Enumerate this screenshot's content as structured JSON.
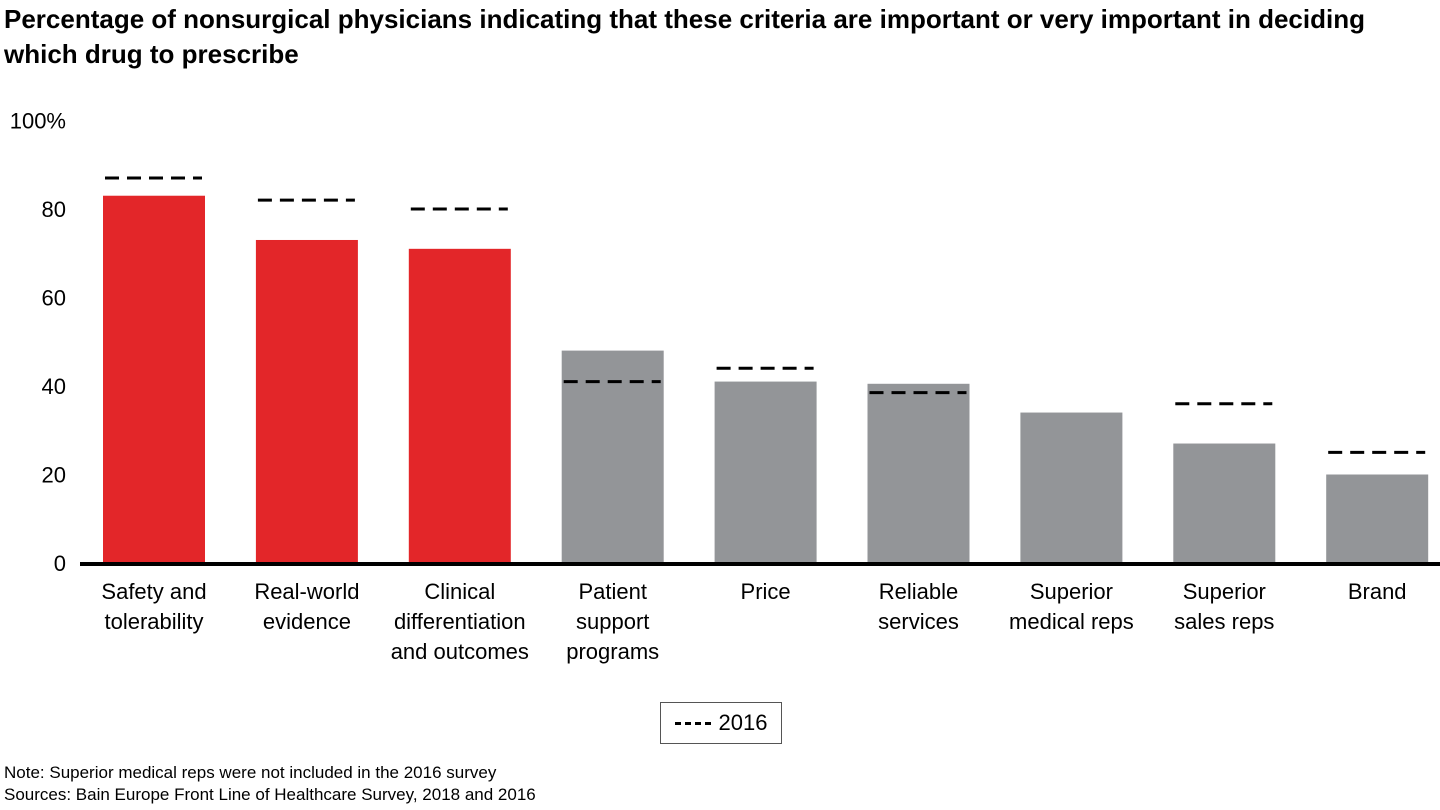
{
  "chart_data": {
    "type": "bar",
    "title": "Percentage of nonsurgical physicians indicating that these criteria are important or very important in deciding which drug to prescribe",
    "categories": [
      "Safety and\ntolerability",
      "Real-world\nevidence",
      "Clinical\ndifferentiation\nand outcomes",
      "Patient\nsupport\nprograms",
      "Price",
      "Reliable\nservices",
      "Superior\nmedical reps",
      "Superior\nsales reps",
      "Brand"
    ],
    "series": [
      {
        "values": [
          83,
          73,
          71,
          48,
          41,
          40.5,
          34,
          27,
          20
        ],
        "colors": [
          "#E32629",
          "#E32629",
          "#E32629",
          "#939598",
          "#939598",
          "#939598",
          "#939598",
          "#939598",
          "#939598"
        ]
      },
      {
        "name": "2016",
        "style": "dashed-marker",
        "values": [
          87,
          82,
          80,
          41,
          44,
          38.5,
          null,
          36,
          25
        ],
        "color": "#000000"
      }
    ],
    "yticks": [
      "0",
      "20",
      "40",
      "60",
      "80",
      "100%"
    ],
    "ylim": [
      0,
      100
    ],
    "grid": false,
    "legend": "bottom-center",
    "xlabel": "",
    "ylabel": ""
  },
  "legend": {
    "label": "2016"
  },
  "notes": {
    "note": "Note: Superior medical reps were not included in the 2016 survey",
    "sources": "Sources: Bain Europe Front Line of Healthcare Survey, 2018 and 2016"
  }
}
